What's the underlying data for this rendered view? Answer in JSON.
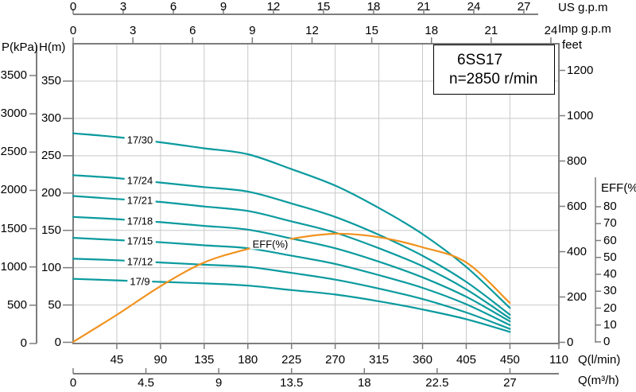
{
  "chart_data": {
    "type": "line",
    "title": "6SS17",
    "subtitle": "n=2850 r/min",
    "axes": {
      "x_top_us": {
        "label": "US  g.p.m",
        "ticks": [
          0,
          3,
          6,
          9,
          12,
          15,
          18,
          21,
          24,
          27
        ]
      },
      "x_top_imp": {
        "label": "Imp  g.p.m",
        "ticks": [
          0,
          3,
          6,
          9,
          12,
          15,
          18,
          21,
          24
        ]
      },
      "x_bottom_lmin": {
        "label": "Q(l/min)",
        "ticks": [
          45,
          90,
          135,
          180,
          225,
          270,
          315,
          360,
          405,
          450
        ],
        "edge_tick_label": "110"
      },
      "x_bottom_m3h": {
        "label": "Q(m³/h)",
        "ticks": [
          0,
          4.5,
          9,
          13.5,
          18,
          22.5,
          27
        ]
      },
      "y_left_kpa": {
        "label": "P(kPa)",
        "ticks": [
          0,
          500,
          1000,
          1500,
          2000,
          2500,
          3000,
          3500
        ]
      },
      "y_left_m": {
        "label": "H(m)",
        "ticks": [
          0,
          50,
          100,
          150,
          200,
          250,
          300,
          350
        ]
      },
      "y_right_feet": {
        "label": "feet",
        "ticks": [
          0,
          200,
          400,
          600,
          800,
          1000,
          1200
        ]
      },
      "y_right_eff": {
        "label": "EFF(%)",
        "ticks": [
          0,
          10,
          20,
          30,
          40,
          50,
          60,
          70,
          80
        ]
      }
    },
    "q_l_min": [
      0,
      45,
      90,
      135,
      180,
      225,
      270,
      315,
      360,
      405,
      450
    ],
    "head_curves": [
      {
        "name": "17/30",
        "H_m": [
          280,
          275,
          268,
          260,
          252,
          232,
          210,
          180,
          145,
          101,
          46
        ]
      },
      {
        "name": "17/24",
        "H_m": [
          224,
          220,
          214,
          208,
          202,
          186,
          168,
          144,
          116,
          81,
          37
        ]
      },
      {
        "name": "17/21",
        "H_m": [
          196,
          192,
          188,
          182,
          176,
          162,
          147,
          126,
          102,
          71,
          32
        ]
      },
      {
        "name": "17/18",
        "H_m": [
          168,
          165,
          161,
          156,
          151,
          139,
          126,
          108,
          87,
          61,
          28
        ]
      },
      {
        "name": "17/15",
        "H_m": [
          140,
          137,
          134,
          130,
          126,
          116,
          105,
          90,
          73,
          51,
          23
        ]
      },
      {
        "name": "17/12",
        "H_m": [
          112,
          110,
          107,
          104,
          101,
          93,
          84,
          72,
          58,
          40,
          18
        ]
      },
      {
        "name": "17/9",
        "H_m": [
          85,
          83,
          81,
          79,
          76,
          70,
          64,
          55,
          44,
          31,
          14
        ]
      }
    ],
    "efficiency_curve": {
      "name": "EFF(%)",
      "values_pct": [
        0,
        16,
        33,
        47,
        55,
        61,
        64,
        62,
        56,
        47,
        23
      ]
    },
    "layout_hints": {
      "grid": "on",
      "x_grid_step_l_min": 45,
      "y_grid_step_m": 50
    },
    "colors": {
      "head_curve": "#0a9a9e",
      "efficiency_curve": "#f1921e",
      "grid": "#c8c8c8",
      "axis": "#7d7d7d",
      "text": "#000000"
    }
  }
}
